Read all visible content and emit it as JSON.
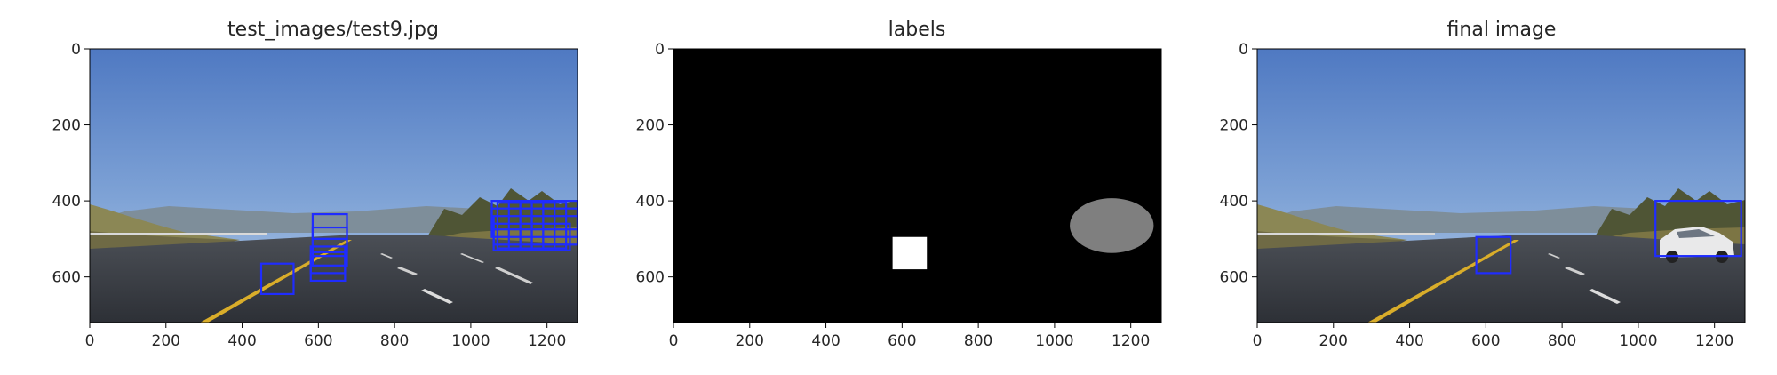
{
  "figure": {
    "panels": [
      {
        "id": "input",
        "title": "test_images/test9.jpg",
        "x_ticks": [
          "0",
          "200",
          "400",
          "600",
          "800",
          "1000",
          "1200"
        ],
        "y_ticks": [
          "0",
          "200",
          "400",
          "600"
        ],
        "image_width": 1280,
        "image_height": 720,
        "detection_boxes": [
          [
            585,
            435,
            675,
            500
          ],
          [
            585,
            470,
            675,
            535
          ],
          [
            585,
            500,
            675,
            570
          ],
          [
            580,
            520,
            670,
            590
          ],
          [
            580,
            545,
            670,
            610
          ],
          [
            450,
            565,
            535,
            645
          ],
          [
            1055,
            400,
            1280,
            475
          ],
          [
            1055,
            420,
            1280,
            495
          ],
          [
            1060,
            440,
            1280,
            515
          ],
          [
            1060,
            460,
            1260,
            530
          ],
          [
            1070,
            405,
            1130,
            525
          ],
          [
            1100,
            405,
            1160,
            525
          ],
          [
            1130,
            405,
            1190,
            525
          ],
          [
            1160,
            405,
            1220,
            525
          ],
          [
            1190,
            405,
            1250,
            525
          ]
        ]
      },
      {
        "id": "labels",
        "title": "labels",
        "x_ticks": [
          "0",
          "200",
          "400",
          "600",
          "800",
          "1000",
          "1200"
        ],
        "y_ticks": [
          "0",
          "200",
          "400",
          "600"
        ],
        "image_width": 1280,
        "image_height": 720,
        "label_regions": [
          {
            "shape": "rect",
            "bounds": [
              575,
              495,
              665,
              580
            ],
            "gray": "#ffffff"
          },
          {
            "shape": "ellipse",
            "center": [
              1150,
              465
            ],
            "radii": [
              110,
              72
            ],
            "gray": "#7f7f7f"
          }
        ]
      },
      {
        "id": "final",
        "title": "final image",
        "x_ticks": [
          "0",
          "200",
          "400",
          "600",
          "800",
          "1000",
          "1200"
        ],
        "y_ticks": [
          "0",
          "200",
          "400",
          "600"
        ],
        "image_width": 1280,
        "image_height": 720,
        "detection_boxes": [
          [
            575,
            495,
            665,
            590
          ],
          [
            1045,
            400,
            1270,
            545
          ]
        ]
      }
    ],
    "colors": {
      "sky_top": "#4f79c2",
      "sky_bottom": "#a9c3e3",
      "box": "#1f2cff",
      "label_background": "#000000"
    }
  }
}
